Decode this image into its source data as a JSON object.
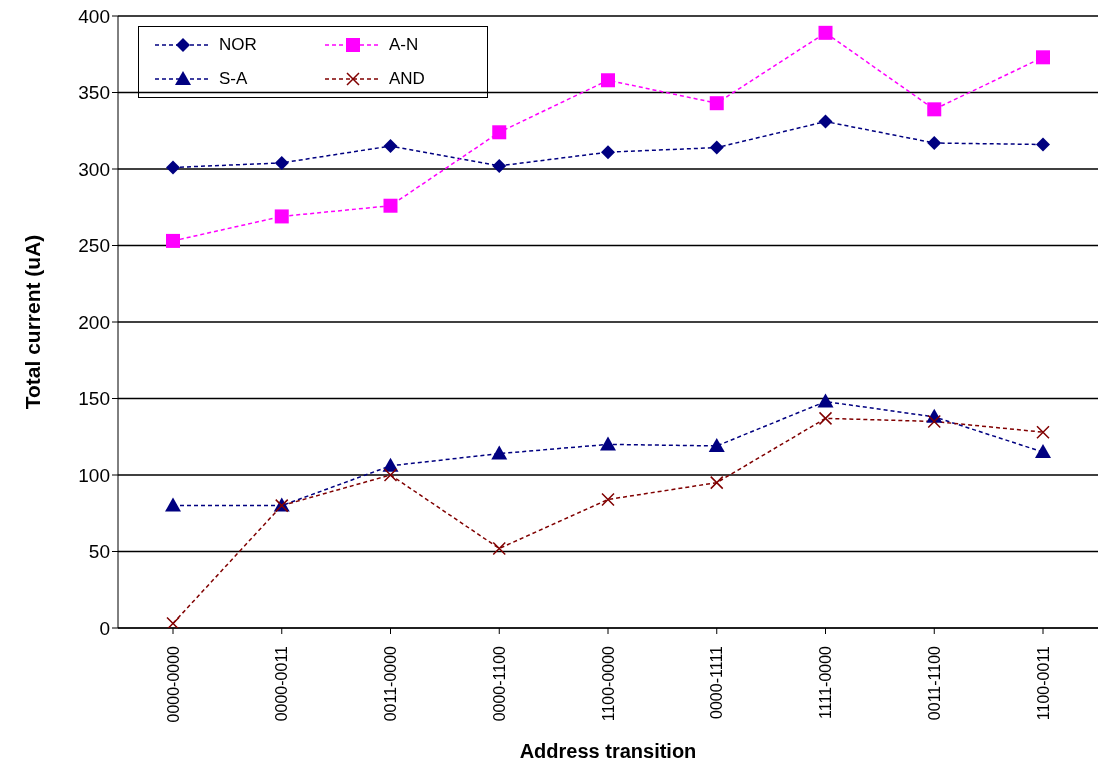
{
  "chart_data": {
    "type": "line",
    "xlabel": "Address transition",
    "ylabel": "Total current (uA)",
    "categories": [
      "0000-0000",
      "0000-0011",
      "0011-0000",
      "0000-1100",
      "1100-0000",
      "0000-1111",
      "1111-0000",
      "0011-1100",
      "1100-0011"
    ],
    "series": [
      {
        "name": "NOR",
        "color": "#000080",
        "marker": "diamond",
        "values": [
          301,
          304,
          315,
          302,
          311,
          314,
          331,
          317,
          316
        ]
      },
      {
        "name": "A-N",
        "color": "#ff00ff",
        "marker": "square",
        "values": [
          253,
          269,
          276,
          324,
          358,
          343,
          389,
          339,
          373
        ]
      },
      {
        "name": "S-A",
        "color": "#000080",
        "marker": "triangle",
        "values": [
          80,
          80,
          106,
          114,
          120,
          119,
          148,
          138,
          115
        ]
      },
      {
        "name": "AND",
        "color": "#800000",
        "marker": "cross",
        "values": [
          3,
          80,
          100,
          52,
          84,
          95,
          137,
          135,
          128
        ]
      }
    ],
    "ylim": [
      0,
      400
    ],
    "yticks": [
      0,
      50,
      100,
      150,
      200,
      250,
      300,
      350,
      400
    ],
    "grid": "y",
    "legend": "top left",
    "line_style": "dashed"
  }
}
